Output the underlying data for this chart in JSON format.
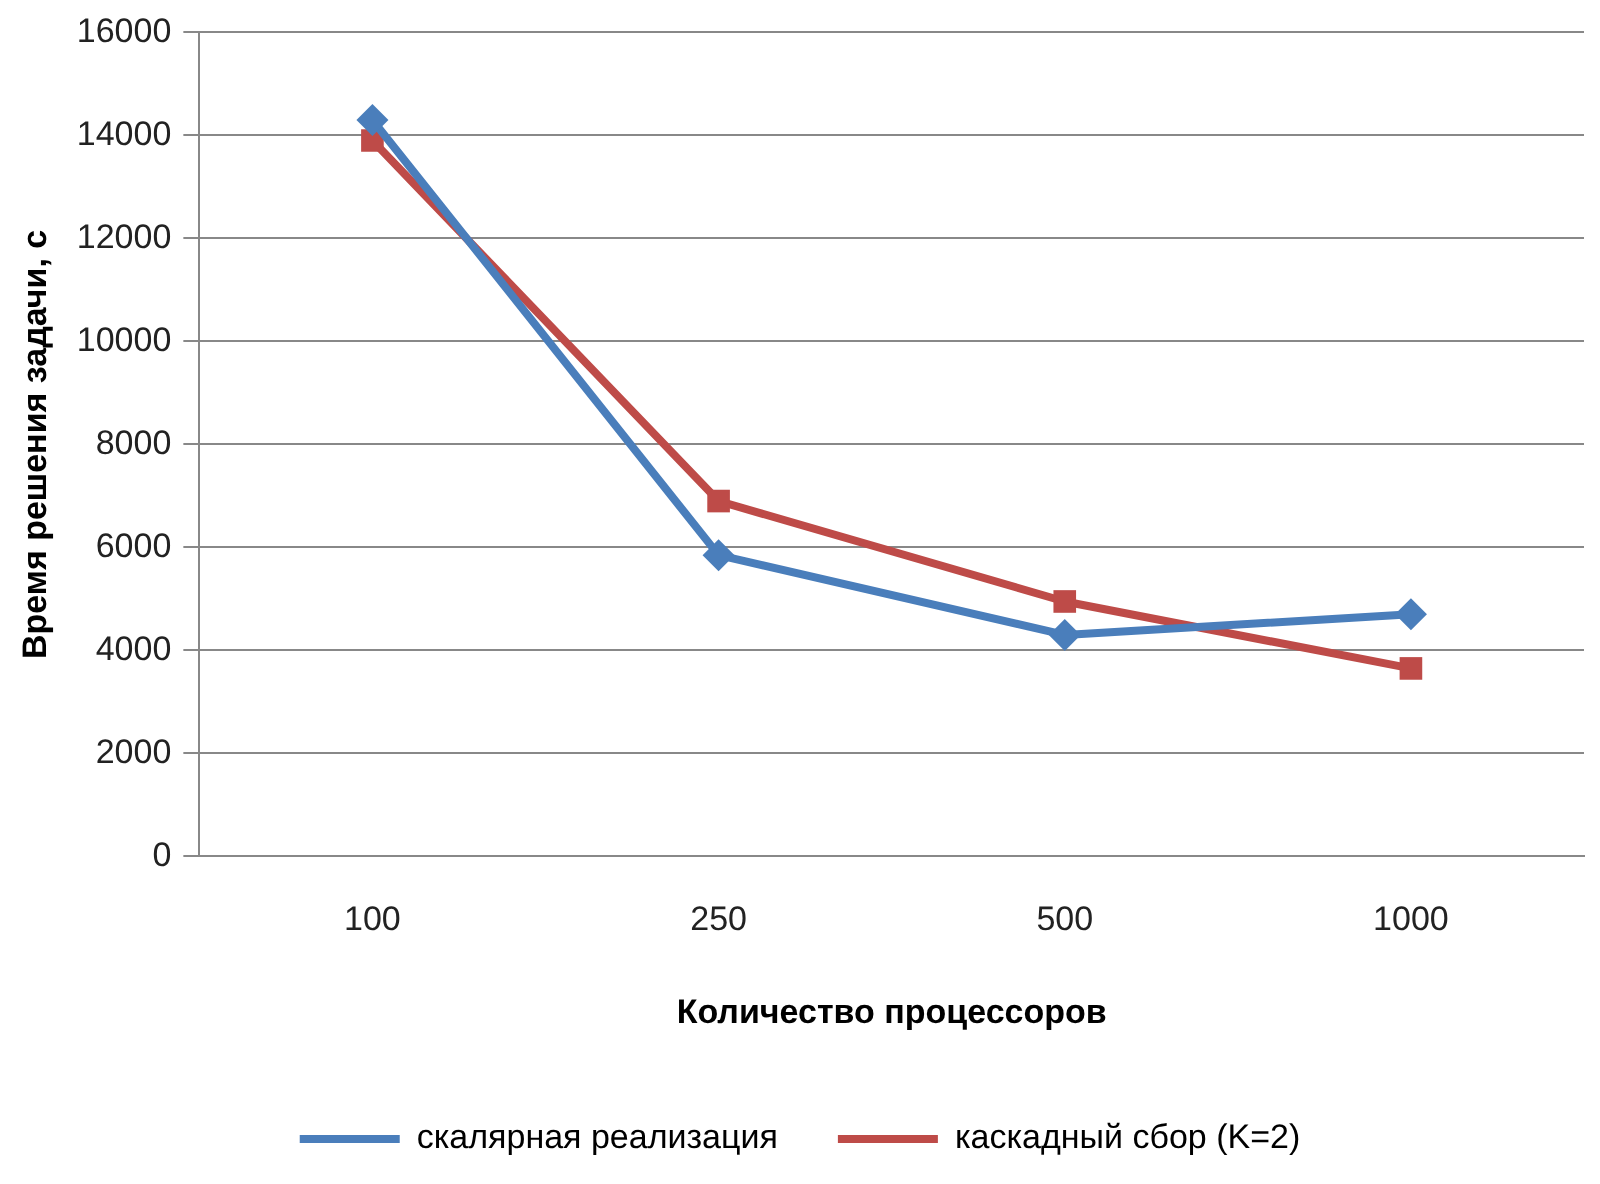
{
  "chart_data": {
    "type": "line",
    "xlabel": "Количество процессоров",
    "ylabel": "Время решения задачи, с",
    "categories": [
      "100",
      "250",
      "500",
      "1000"
    ],
    "series": [
      {
        "name": "скалярная реализация",
        "color": "#4a7ebb",
        "marker": "diamond",
        "values": [
          14300,
          5850,
          4300,
          4700
        ]
      },
      {
        "name": "каскадный сбор (K=2)",
        "color": "#be4b48",
        "marker": "square",
        "values": [
          13900,
          6900,
          4950,
          3650
        ]
      }
    ],
    "ylim": [
      0,
      16000
    ],
    "yticks": [
      0,
      2000,
      4000,
      6000,
      8000,
      10000,
      12000,
      14000,
      16000
    ],
    "grid": "y",
    "legend": "bottom",
    "line_style": "solid"
  }
}
